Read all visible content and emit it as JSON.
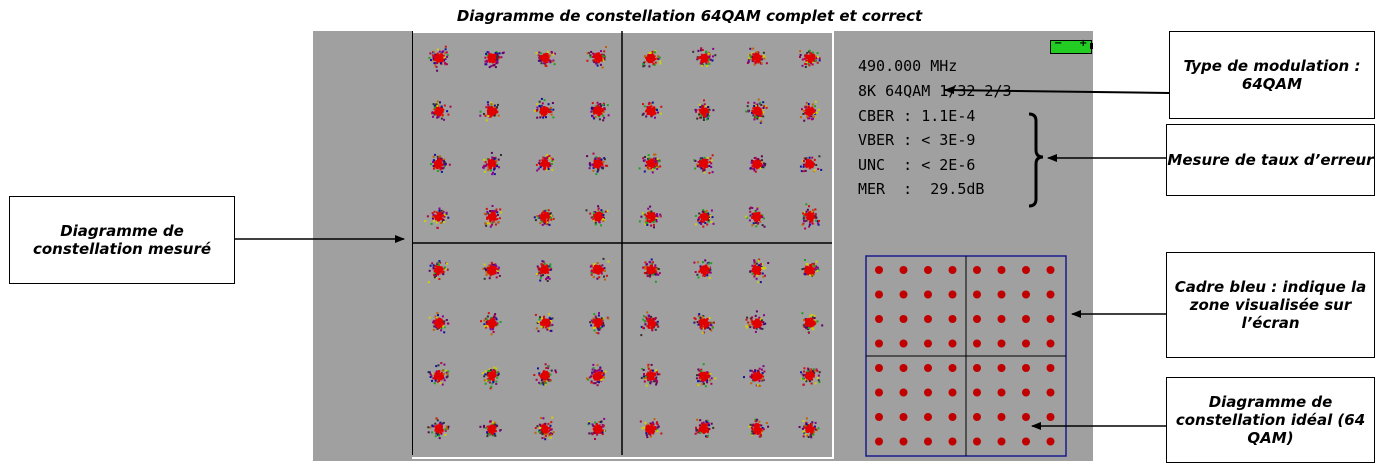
{
  "title": "Diagramme de constellation 64QAM complet et correct",
  "readout": {
    "frequency": "490.000 MHz",
    "mode": "8K 64QAM 1/32 2/3",
    "cber": "CBER : 1.1E-4",
    "vber": "VBER : < 3E-9",
    "unc": "UNC  : < 2E-6",
    "mer": "MER  :  29.5dB"
  },
  "callouts": {
    "measured": "Diagramme de constellation mesuré",
    "modulation": "Type de modulation : 64QAM",
    "error_rate": "Mesure de taux d’erreur",
    "blue_frame": "Cadre bleu : indique la zone visualisée sur l’écran",
    "ideal": "Diagramme de constellation idéal (64 QAM)"
  },
  "colors": {
    "screen": "#a0a0a0",
    "frame": "#1a1a8c",
    "ideal_dot": "#c00000",
    "battery": "#22cc22"
  }
}
